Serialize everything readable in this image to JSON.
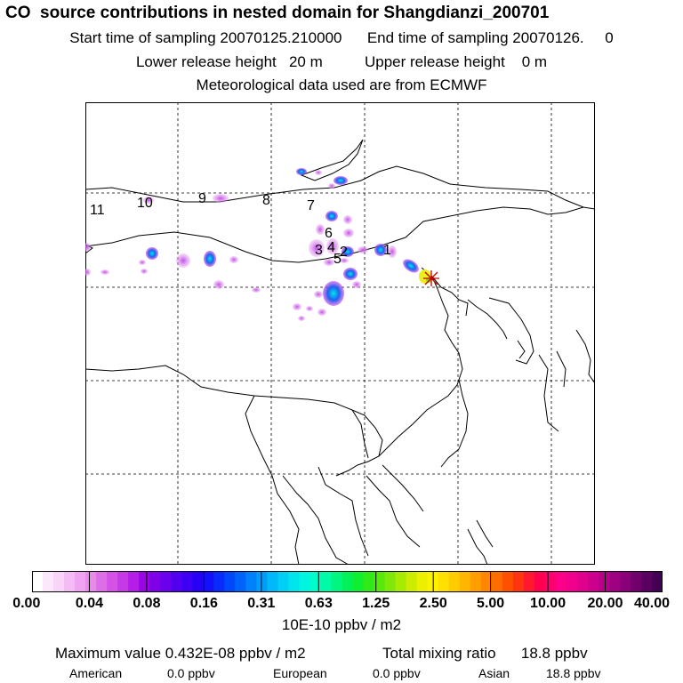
{
  "header": {
    "title": "CO  source contributions in nested domain for Shangdianzi_200701",
    "start_label": "Start time of sampling 20070125.210000",
    "end_label": "End time of sampling 20070126.     0",
    "lower_release": "Lower release height   20 m",
    "upper_release": "Upper release height    0 m",
    "met_data": "Meteorological data used are from ECMWF"
  },
  "map": {
    "trajectory_labels": [
      "1",
      "2",
      "3",
      "4",
      "5",
      "6",
      "7",
      "8",
      "9",
      "10",
      "11"
    ],
    "receptor_marker": "star-marker",
    "colors": {
      "frame": "#000000",
      "grid": "#000000",
      "receptor": "#ff0000"
    }
  },
  "colorbar": {
    "tick_labels": [
      "0.00",
      "0.04",
      "0.08",
      "0.16",
      "0.31",
      "0.63",
      "1.25",
      "2.50",
      "5.00",
      "10.00",
      "20.00",
      "40.00"
    ],
    "colors": [
      "#ffffff",
      "#fce8fc",
      "#f8d4f8",
      "#f4bcf4",
      "#eea4f0",
      "#e88ae8",
      "#de6ee6",
      "#d452e6",
      "#c63ae6",
      "#b41ee6",
      "#9a06e6",
      "#8000e8",
      "#6a00ec",
      "#5400f0",
      "#3e00f4",
      "#2800f8",
      "#1410fa",
      "#0a2cfa",
      "#0048fa",
      "#0064fa",
      "#0080fa",
      "#009cfa",
      "#00b8fa",
      "#00d0f4",
      "#00e4ec",
      "#00f4e0",
      "#00fcc8",
      "#00faa8",
      "#00f680",
      "#00f258",
      "#10ee30",
      "#30ea18",
      "#58e80c",
      "#80e808",
      "#a8ea04",
      "#ccec00",
      "#ecf000",
      "#fff000",
      "#ffe000",
      "#ffcc00",
      "#ffb600",
      "#ff9e00",
      "#ff8600",
      "#ff6c00",
      "#ff5000",
      "#ff3410",
      "#ff1830",
      "#ff0050",
      "#ff0070",
      "#fc0088",
      "#f0008c",
      "#e0008e",
      "#cc008c",
      "#b60088",
      "#a00082",
      "#8a0078",
      "#72006c",
      "#5a0060",
      "#440052"
    ],
    "unit": "10E-10 ppbv / m2"
  },
  "summary": {
    "max_value": "Maximum value  0.432E-08 ppbv / m2",
    "total_mixing": "Total mixing ratio      18.8 ppbv",
    "american_label": "American",
    "american_value": "0.0 ppbv",
    "european_label": "European",
    "european_value": "0.0 ppbv",
    "asian_label": "Asian",
    "asian_value": "18.8 ppbv"
  }
}
